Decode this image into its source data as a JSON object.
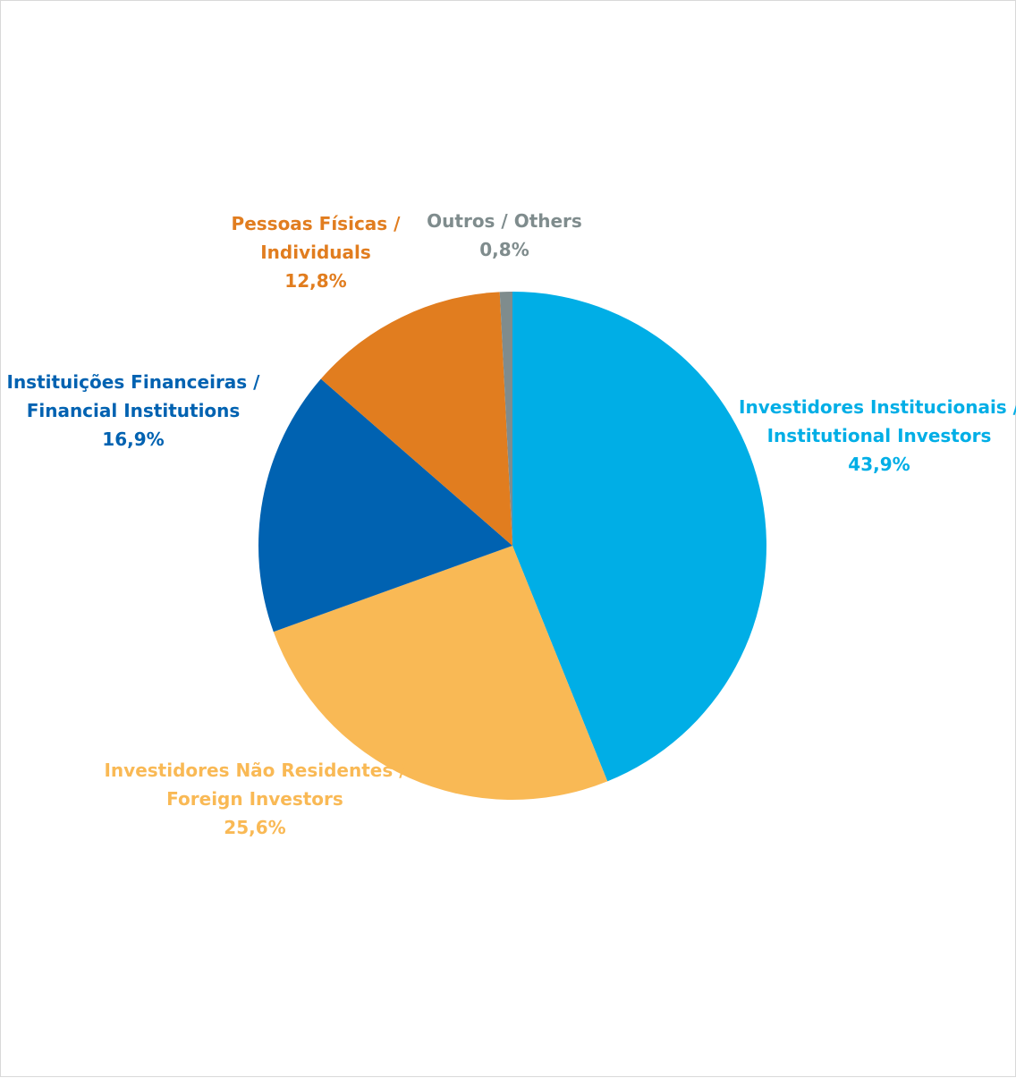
{
  "chart_data": {
    "type": "pie",
    "title": "",
    "slices": [
      {
        "lines": [
          "Investidores Institucionais /",
          "Institutional Investors"
        ],
        "value_label": "43,9%",
        "value": 43.9,
        "color": "#00AEE6"
      },
      {
        "lines": [
          "Investidores Não Residentes /",
          "Foreign Investors"
        ],
        "value_label": "25,6%",
        "value": 25.6,
        "color": "#F9B955"
      },
      {
        "lines": [
          "Instituições Financeiras /",
          "Financial Institutions"
        ],
        "value_label": "16,9%",
        "value": 16.9,
        "color": "#0062B1"
      },
      {
        "lines": [
          "Pessoas Físicas /",
          "Individuals"
        ],
        "value_label": "12,8%",
        "value": 12.8,
        "color": "#E17D1F"
      },
      {
        "lines": [
          "Outros / Others"
        ],
        "value_label": "0,8%",
        "value": 0.8,
        "color": "#7F8C8D"
      }
    ],
    "start_angle_deg": 0,
    "direction": "clockwise",
    "legend": "none",
    "grid": false
  }
}
